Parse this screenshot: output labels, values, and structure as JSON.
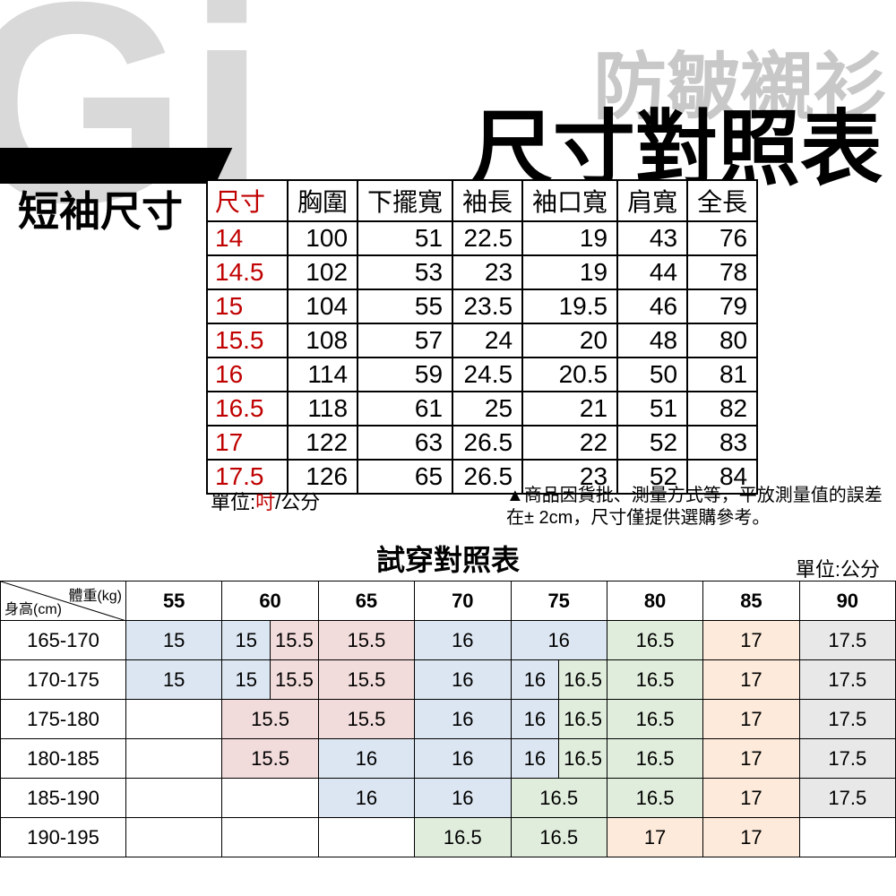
{
  "bg_watermark": "Gi",
  "bg_subtitle": "防皺襯衫",
  "main_title": "尺寸對照表",
  "section_label": "短袖尺寸",
  "size_table": {
    "headers": [
      "尺寸",
      "胸圍",
      "下擺寬",
      "袖長",
      "袖口寬",
      "肩寬",
      "全長"
    ],
    "rows": [
      [
        "14",
        "100",
        "51",
        "22.5",
        "19",
        "43",
        "76"
      ],
      [
        "14.5",
        "102",
        "53",
        "23",
        "19",
        "44",
        "78"
      ],
      [
        "15",
        "104",
        "55",
        "23.5",
        "19.5",
        "46",
        "79"
      ],
      [
        "15.5",
        "108",
        "57",
        "24",
        "20",
        "48",
        "80"
      ],
      [
        "16",
        "114",
        "59",
        "24.5",
        "20.5",
        "50",
        "81"
      ],
      [
        "16.5",
        "118",
        "61",
        "25",
        "21",
        "51",
        "82"
      ],
      [
        "17",
        "122",
        "63",
        "26.5",
        "22",
        "52",
        "83"
      ],
      [
        "17.5",
        "126",
        "65",
        "26.5",
        "23",
        "52",
        "84"
      ]
    ]
  },
  "unit_label_prefix": "單位:",
  "unit_inch": "吋",
  "unit_sep": "/",
  "unit_cm": "公分",
  "warning": "▲商品因貨批、測量方式等，平放測量值的誤差在± 2cm，尺寸僅提供選購參考。",
  "fit_title": "試穿對照表",
  "fit_unit": "單位:公分",
  "fit_corner_weight": "體重(kg)",
  "fit_corner_height": "身高(cm)",
  "fit_headers": [
    "55",
    "60",
    "65",
    "70",
    "75",
    "80",
    "85",
    "90"
  ],
  "fit_rows": [
    {
      "h": "165-170",
      "cells": [
        {
          "v": [
            "15"
          ],
          "c": "c-blue"
        },
        {
          "v": [
            "15",
            "15.5"
          ],
          "c": [
            "c-blue",
            "c-pink"
          ]
        },
        {
          "v": [
            "15.5"
          ],
          "c": "c-pink"
        },
        {
          "v": [
            "16"
          ],
          "c": "c-blue"
        },
        {
          "v": [
            "16"
          ],
          "c": "c-blue"
        },
        {
          "v": [
            "16.5"
          ],
          "c": "c-green"
        },
        {
          "v": [
            "17"
          ],
          "c": "c-yell"
        },
        {
          "v": [
            "17.5"
          ],
          "c": "c-grey"
        }
      ]
    },
    {
      "h": "170-175",
      "cells": [
        {
          "v": [
            "15"
          ],
          "c": "c-blue"
        },
        {
          "v": [
            "15",
            "15.5"
          ],
          "c": [
            "c-blue",
            "c-pink"
          ]
        },
        {
          "v": [
            "15.5"
          ],
          "c": "c-pink"
        },
        {
          "v": [
            "16"
          ],
          "c": "c-blue"
        },
        {
          "v": [
            "16",
            "16.5"
          ],
          "c": [
            "c-blue",
            "c-green"
          ]
        },
        {
          "v": [
            "16.5"
          ],
          "c": "c-green"
        },
        {
          "v": [
            "17"
          ],
          "c": "c-yell"
        },
        {
          "v": [
            "17.5"
          ],
          "c": "c-grey"
        }
      ]
    },
    {
      "h": "175-180",
      "cells": [
        {
          "v": [
            ""
          ],
          "c": ""
        },
        {
          "v": [
            "15.5"
          ],
          "c": "c-pink"
        },
        {
          "v": [
            "15.5"
          ],
          "c": "c-pink"
        },
        {
          "v": [
            "16"
          ],
          "c": "c-blue"
        },
        {
          "v": [
            "16",
            "16.5"
          ],
          "c": [
            "c-blue",
            "c-green"
          ]
        },
        {
          "v": [
            "16.5"
          ],
          "c": "c-green"
        },
        {
          "v": [
            "17"
          ],
          "c": "c-yell"
        },
        {
          "v": [
            "17.5"
          ],
          "c": "c-grey"
        }
      ]
    },
    {
      "h": "180-185",
      "cells": [
        {
          "v": [
            ""
          ],
          "c": ""
        },
        {
          "v": [
            "15.5"
          ],
          "c": "c-pink"
        },
        {
          "v": [
            "16"
          ],
          "c": "c-blue"
        },
        {
          "v": [
            "16"
          ],
          "c": "c-blue"
        },
        {
          "v": [
            "16",
            "16.5"
          ],
          "c": [
            "c-blue",
            "c-green"
          ]
        },
        {
          "v": [
            "16.5"
          ],
          "c": "c-green"
        },
        {
          "v": [
            "17"
          ],
          "c": "c-yell"
        },
        {
          "v": [
            "17.5"
          ],
          "c": "c-grey"
        }
      ]
    },
    {
      "h": "185-190",
      "cells": [
        {
          "v": [
            ""
          ],
          "c": ""
        },
        {
          "v": [
            ""
          ],
          "c": ""
        },
        {
          "v": [
            "16"
          ],
          "c": "c-blue"
        },
        {
          "v": [
            "16"
          ],
          "c": "c-blue"
        },
        {
          "v": [
            "16.5"
          ],
          "c": "c-green"
        },
        {
          "v": [
            "16.5"
          ],
          "c": "c-green"
        },
        {
          "v": [
            "17"
          ],
          "c": "c-yell"
        },
        {
          "v": [
            "17.5"
          ],
          "c": "c-grey"
        }
      ]
    },
    {
      "h": "190-195",
      "cells": [
        {
          "v": [
            ""
          ],
          "c": ""
        },
        {
          "v": [
            ""
          ],
          "c": ""
        },
        {
          "v": [
            ""
          ],
          "c": ""
        },
        {
          "v": [
            "16.5"
          ],
          "c": "c-green"
        },
        {
          "v": [
            "16.5"
          ],
          "c": "c-green"
        },
        {
          "v": [
            "17"
          ],
          "c": "c-yell"
        },
        {
          "v": [
            "17"
          ],
          "c": "c-yell"
        },
        {
          "v": [
            ""
          ],
          "c": ""
        }
      ]
    }
  ]
}
